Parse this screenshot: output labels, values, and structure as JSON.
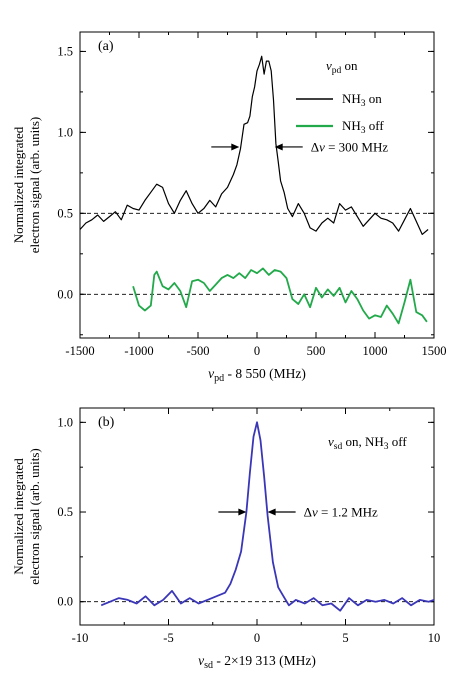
{
  "figure": {
    "panel_a_label": "(a)",
    "panel_b_label": "(b)",
    "ylabel_line1": "Normalized integrated",
    "ylabel_line2": "electron signal (arb. units)"
  },
  "chart_data": [
    {
      "type": "line",
      "panel": "(a)",
      "xlabel": {
        "var": "v",
        "sub": "pd",
        "rest": " - 8 550 (MHz)"
      },
      "ylabel": "Normalized integrated electron signal (arb. units)",
      "xlim": [
        -1500,
        1500
      ],
      "ylim": [
        -0.27,
        1.62
      ],
      "xticks": [
        -1500,
        -1000,
        -500,
        0,
        500,
        1000,
        1500
      ],
      "xtick_labels": [
        "-1500",
        "-1000",
        "-500",
        "0",
        "500",
        "1000",
        "1500"
      ],
      "yticks": [
        0.0,
        0.5,
        1.0,
        1.5
      ],
      "ytick_labels": [
        "0.0",
        "0.5",
        "1.0",
        "1.5"
      ],
      "legend": {
        "title": {
          "var": "v",
          "sub": "pd",
          "rest": " on"
        },
        "position": "top-right",
        "entries": [
          {
            "pre": "NH",
            "sub": "3",
            "post": " on",
            "color": "#000000"
          },
          {
            "pre": "NH",
            "sub": "3",
            "post": " off",
            "color": "#22a94a"
          }
        ]
      },
      "annotation": {
        "text": "Δν = 300 MHz",
        "delta": "Δ",
        "var": "v",
        "rest": " = 300 MHz",
        "arrows_at_x": [
          -150,
          150
        ],
        "arrows_at_y": 0.91
      },
      "baselines": [
        0.5,
        0.0
      ],
      "series": [
        {
          "name": "NH3 on",
          "color": "#000000",
          "x": [
            -1500,
            -1450,
            -1400,
            -1350,
            -1300,
            -1250,
            -1200,
            -1150,
            -1100,
            -1050,
            -1000,
            -950,
            -900,
            -850,
            -800,
            -750,
            -700,
            -650,
            -600,
            -550,
            -500,
            -450,
            -400,
            -350,
            -300,
            -250,
            -200,
            -170,
            -140,
            -110,
            -80,
            -60,
            -40,
            -20,
            0,
            20,
            40,
            60,
            80,
            100,
            120,
            140,
            160,
            180,
            200,
            230,
            260,
            300,
            350,
            400,
            450,
            500,
            550,
            600,
            650,
            700,
            750,
            800,
            850,
            900,
            950,
            1000,
            1050,
            1100,
            1150,
            1200,
            1250,
            1300,
            1350,
            1400,
            1450
          ],
          "y": [
            0.4,
            0.44,
            0.46,
            0.49,
            0.45,
            0.48,
            0.51,
            0.46,
            0.55,
            0.53,
            0.52,
            0.58,
            0.63,
            0.68,
            0.66,
            0.56,
            0.5,
            0.58,
            0.64,
            0.56,
            0.5,
            0.53,
            0.58,
            0.54,
            0.62,
            0.66,
            0.74,
            0.8,
            0.9,
            1.05,
            1.06,
            1.1,
            1.22,
            1.28,
            1.38,
            1.42,
            1.47,
            1.36,
            1.44,
            1.44,
            1.38,
            1.2,
            0.93,
            0.82,
            0.7,
            0.63,
            0.53,
            0.48,
            0.56,
            0.5,
            0.41,
            0.39,
            0.44,
            0.47,
            0.44,
            0.56,
            0.52,
            0.54,
            0.48,
            0.42,
            0.46,
            0.5,
            0.47,
            0.46,
            0.44,
            0.39,
            0.46,
            0.53,
            0.45,
            0.37,
            0.4
          ]
        },
        {
          "name": "NH3 off",
          "color": "#22a94a",
          "x": [
            -1050,
            -1000,
            -950,
            -900,
            -870,
            -850,
            -800,
            -750,
            -700,
            -650,
            -600,
            -550,
            -500,
            -450,
            -400,
            -350,
            -300,
            -250,
            -200,
            -150,
            -100,
            -50,
            0,
            50,
            100,
            150,
            200,
            250,
            300,
            350,
            400,
            450,
            500,
            550,
            600,
            650,
            700,
            750,
            800,
            850,
            900,
            950,
            1000,
            1050,
            1100,
            1150,
            1200,
            1250,
            1300,
            1350,
            1400,
            1440
          ],
          "y": [
            0.05,
            -0.07,
            -0.1,
            -0.07,
            0.12,
            0.14,
            0.05,
            0.03,
            0.07,
            0.02,
            -0.08,
            0.08,
            0.09,
            0.07,
            0.02,
            0.06,
            0.1,
            0.12,
            0.1,
            0.13,
            0.1,
            0.15,
            0.13,
            0.16,
            0.12,
            0.15,
            0.14,
            0.1,
            -0.03,
            -0.06,
            0.0,
            -0.08,
            0.04,
            -0.02,
            0.03,
            -0.01,
            0.04,
            -0.05,
            0.02,
            -0.03,
            -0.1,
            -0.15,
            -0.13,
            -0.14,
            -0.07,
            -0.12,
            -0.18,
            -0.05,
            0.09,
            -0.11,
            -0.13,
            -0.17
          ]
        }
      ]
    },
    {
      "type": "line",
      "panel": "(b)",
      "xlabel": {
        "var": "v",
        "sub": "sd",
        "rest": " - 2×19 313  (MHz)"
      },
      "ylabel": "Normalized integrated electron signal (arb. units)",
      "xlim": [
        -10,
        10
      ],
      "ylim": [
        -0.13,
        1.08
      ],
      "xticks": [
        -10,
        -5,
        0,
        5,
        10
      ],
      "xtick_labels": [
        "-10",
        "-5",
        "0",
        "5",
        "10"
      ],
      "yticks": [
        0.0,
        0.5,
        1.0
      ],
      "ytick_labels": [
        "0.0",
        "0.5",
        "1.0"
      ],
      "legend": {
        "var": "v",
        "sub": "sd",
        "rest": " on, NH",
        "sub2": "3",
        "rest2": " off",
        "position": "top-right"
      },
      "annotation": {
        "text": "Δν = 1.2 MHz",
        "delta": "Δ",
        "var": "v",
        "rest": " = 1.2 MHz",
        "arrows_at_x": [
          -0.6,
          0.6
        ],
        "arrows_at_y": 0.5
      },
      "baselines": [
        0.0
      ],
      "series": [
        {
          "name": "",
          "color": "#3a36b8",
          "x": [
            -8.8,
            -8.3,
            -7.8,
            -7.3,
            -6.8,
            -6.3,
            -5.8,
            -5.3,
            -4.8,
            -4.3,
            -3.8,
            -3.3,
            -2.8,
            -2.3,
            -1.8,
            -1.5,
            -1.2,
            -0.9,
            -0.6,
            -0.4,
            -0.2,
            0.0,
            0.2,
            0.4,
            0.6,
            0.9,
            1.2,
            1.5,
            1.8,
            2.2,
            2.7,
            3.2,
            3.7,
            4.2,
            4.7,
            5.2,
            5.7,
            6.2,
            6.7,
            7.2,
            7.7,
            8.2,
            8.7,
            9.2,
            9.7,
            10
          ],
          "y": [
            -0.02,
            0.0,
            0.02,
            0.01,
            -0.01,
            0.03,
            -0.02,
            0.01,
            0.06,
            -0.01,
            0.02,
            -0.01,
            0.01,
            0.03,
            0.05,
            0.1,
            0.18,
            0.28,
            0.5,
            0.72,
            0.92,
            1.0,
            0.9,
            0.7,
            0.48,
            0.22,
            0.08,
            0.03,
            -0.02,
            0.01,
            -0.01,
            0.02,
            -0.02,
            -0.01,
            -0.05,
            0.02,
            -0.02,
            0.01,
            0.0,
            0.01,
            -0.01,
            0.02,
            -0.02,
            0.01,
            0.0,
            0.01
          ]
        }
      ]
    }
  ]
}
